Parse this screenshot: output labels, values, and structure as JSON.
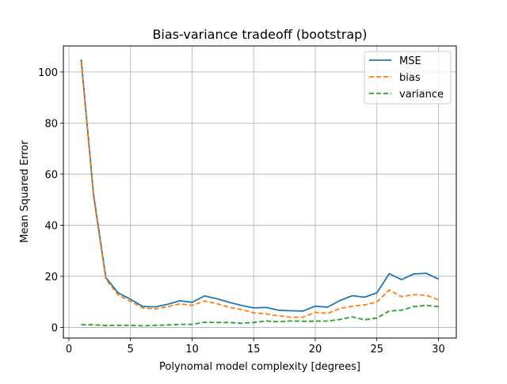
{
  "chart_data": {
    "type": "line",
    "title": "Bias-variance tradeoff (bootstrap)",
    "xlabel": "Polynomal model complexity [degrees]",
    "ylabel": "Mean Squared Error",
    "xlim": [
      -0.45,
      31.45
    ],
    "ylim": [
      -4.2,
      110.2
    ],
    "xticks": [
      0,
      5,
      10,
      15,
      20,
      25,
      30
    ],
    "yticks": [
      0,
      20,
      40,
      60,
      80,
      100
    ],
    "grid": true,
    "legend_position": "top-right",
    "x": [
      1,
      2,
      3,
      4,
      5,
      6,
      7,
      8,
      9,
      10,
      11,
      12,
      13,
      14,
      15,
      16,
      17,
      18,
      19,
      20,
      21,
      22,
      23,
      24,
      25,
      26,
      27,
      28,
      29,
      30
    ],
    "series": [
      {
        "name": "MSE",
        "color": "#1f77b4",
        "dash": "solid",
        "values": [
          104.9,
          52.0,
          19.5,
          13.5,
          11.0,
          8.2,
          8.0,
          9.0,
          10.4,
          9.8,
          12.3,
          11.2,
          9.8,
          8.6,
          7.6,
          7.8,
          6.7,
          6.5,
          6.4,
          8.3,
          7.9,
          10.5,
          12.4,
          11.8,
          13.5,
          21.0,
          18.7,
          20.9,
          21.2,
          18.9
        ]
      },
      {
        "name": "bias",
        "color": "#ff7f0e",
        "dash": "dashed",
        "values": [
          103.9,
          51.0,
          18.8,
          12.7,
          10.2,
          7.6,
          7.2,
          8.1,
          9.2,
          8.6,
          10.3,
          9.3,
          7.9,
          7.0,
          5.7,
          5.3,
          4.5,
          4.0,
          4.0,
          5.9,
          5.4,
          7.4,
          8.3,
          8.8,
          9.9,
          14.6,
          12.0,
          12.8,
          12.6,
          10.8
        ]
      },
      {
        "name": "variance",
        "color": "#2ca02c",
        "dash": "dashed",
        "values": [
          1.0,
          1.0,
          0.7,
          0.8,
          0.8,
          0.6,
          0.8,
          0.9,
          1.2,
          1.2,
          2.0,
          1.9,
          1.9,
          1.6,
          1.9,
          2.5,
          2.2,
          2.5,
          2.4,
          2.4,
          2.5,
          3.1,
          4.1,
          3.0,
          3.6,
          6.4,
          6.7,
          8.1,
          8.6,
          8.1
        ]
      }
    ]
  }
}
